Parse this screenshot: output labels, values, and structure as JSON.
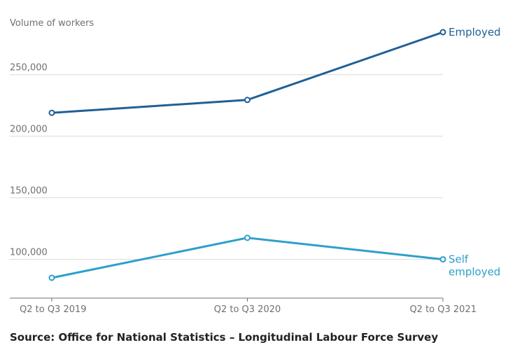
{
  "chart_data": {
    "type": "line",
    "ylabel": "Volume of workers",
    "categories": [
      "Q2 to Q3 2019",
      "Q2 to Q3 2020",
      "Q2 to Q3 2021"
    ],
    "yticks": [
      100000,
      150000,
      200000,
      250000
    ],
    "ytick_labels": [
      "100,000",
      "150,000",
      "200,000",
      "250,000"
    ],
    "ylim": [
      67000,
      285000
    ],
    "grid": true,
    "series": [
      {
        "name": "Employed",
        "label_lines": [
          "Employed"
        ],
        "values": [
          219000,
          229500,
          284500
        ],
        "color": "#206095"
      },
      {
        "name": "Self employed",
        "label_lines": [
          "Self",
          "employed"
        ],
        "values": [
          85000,
          117500,
          100000
        ],
        "color": "#2e9fcb"
      }
    ]
  },
  "source": "Source: Office for National Statistics – Longitudinal Labour Force Survey",
  "colors": {
    "grid": "#d9d9d9",
    "axis": "#707071",
    "text": "#707071"
  }
}
